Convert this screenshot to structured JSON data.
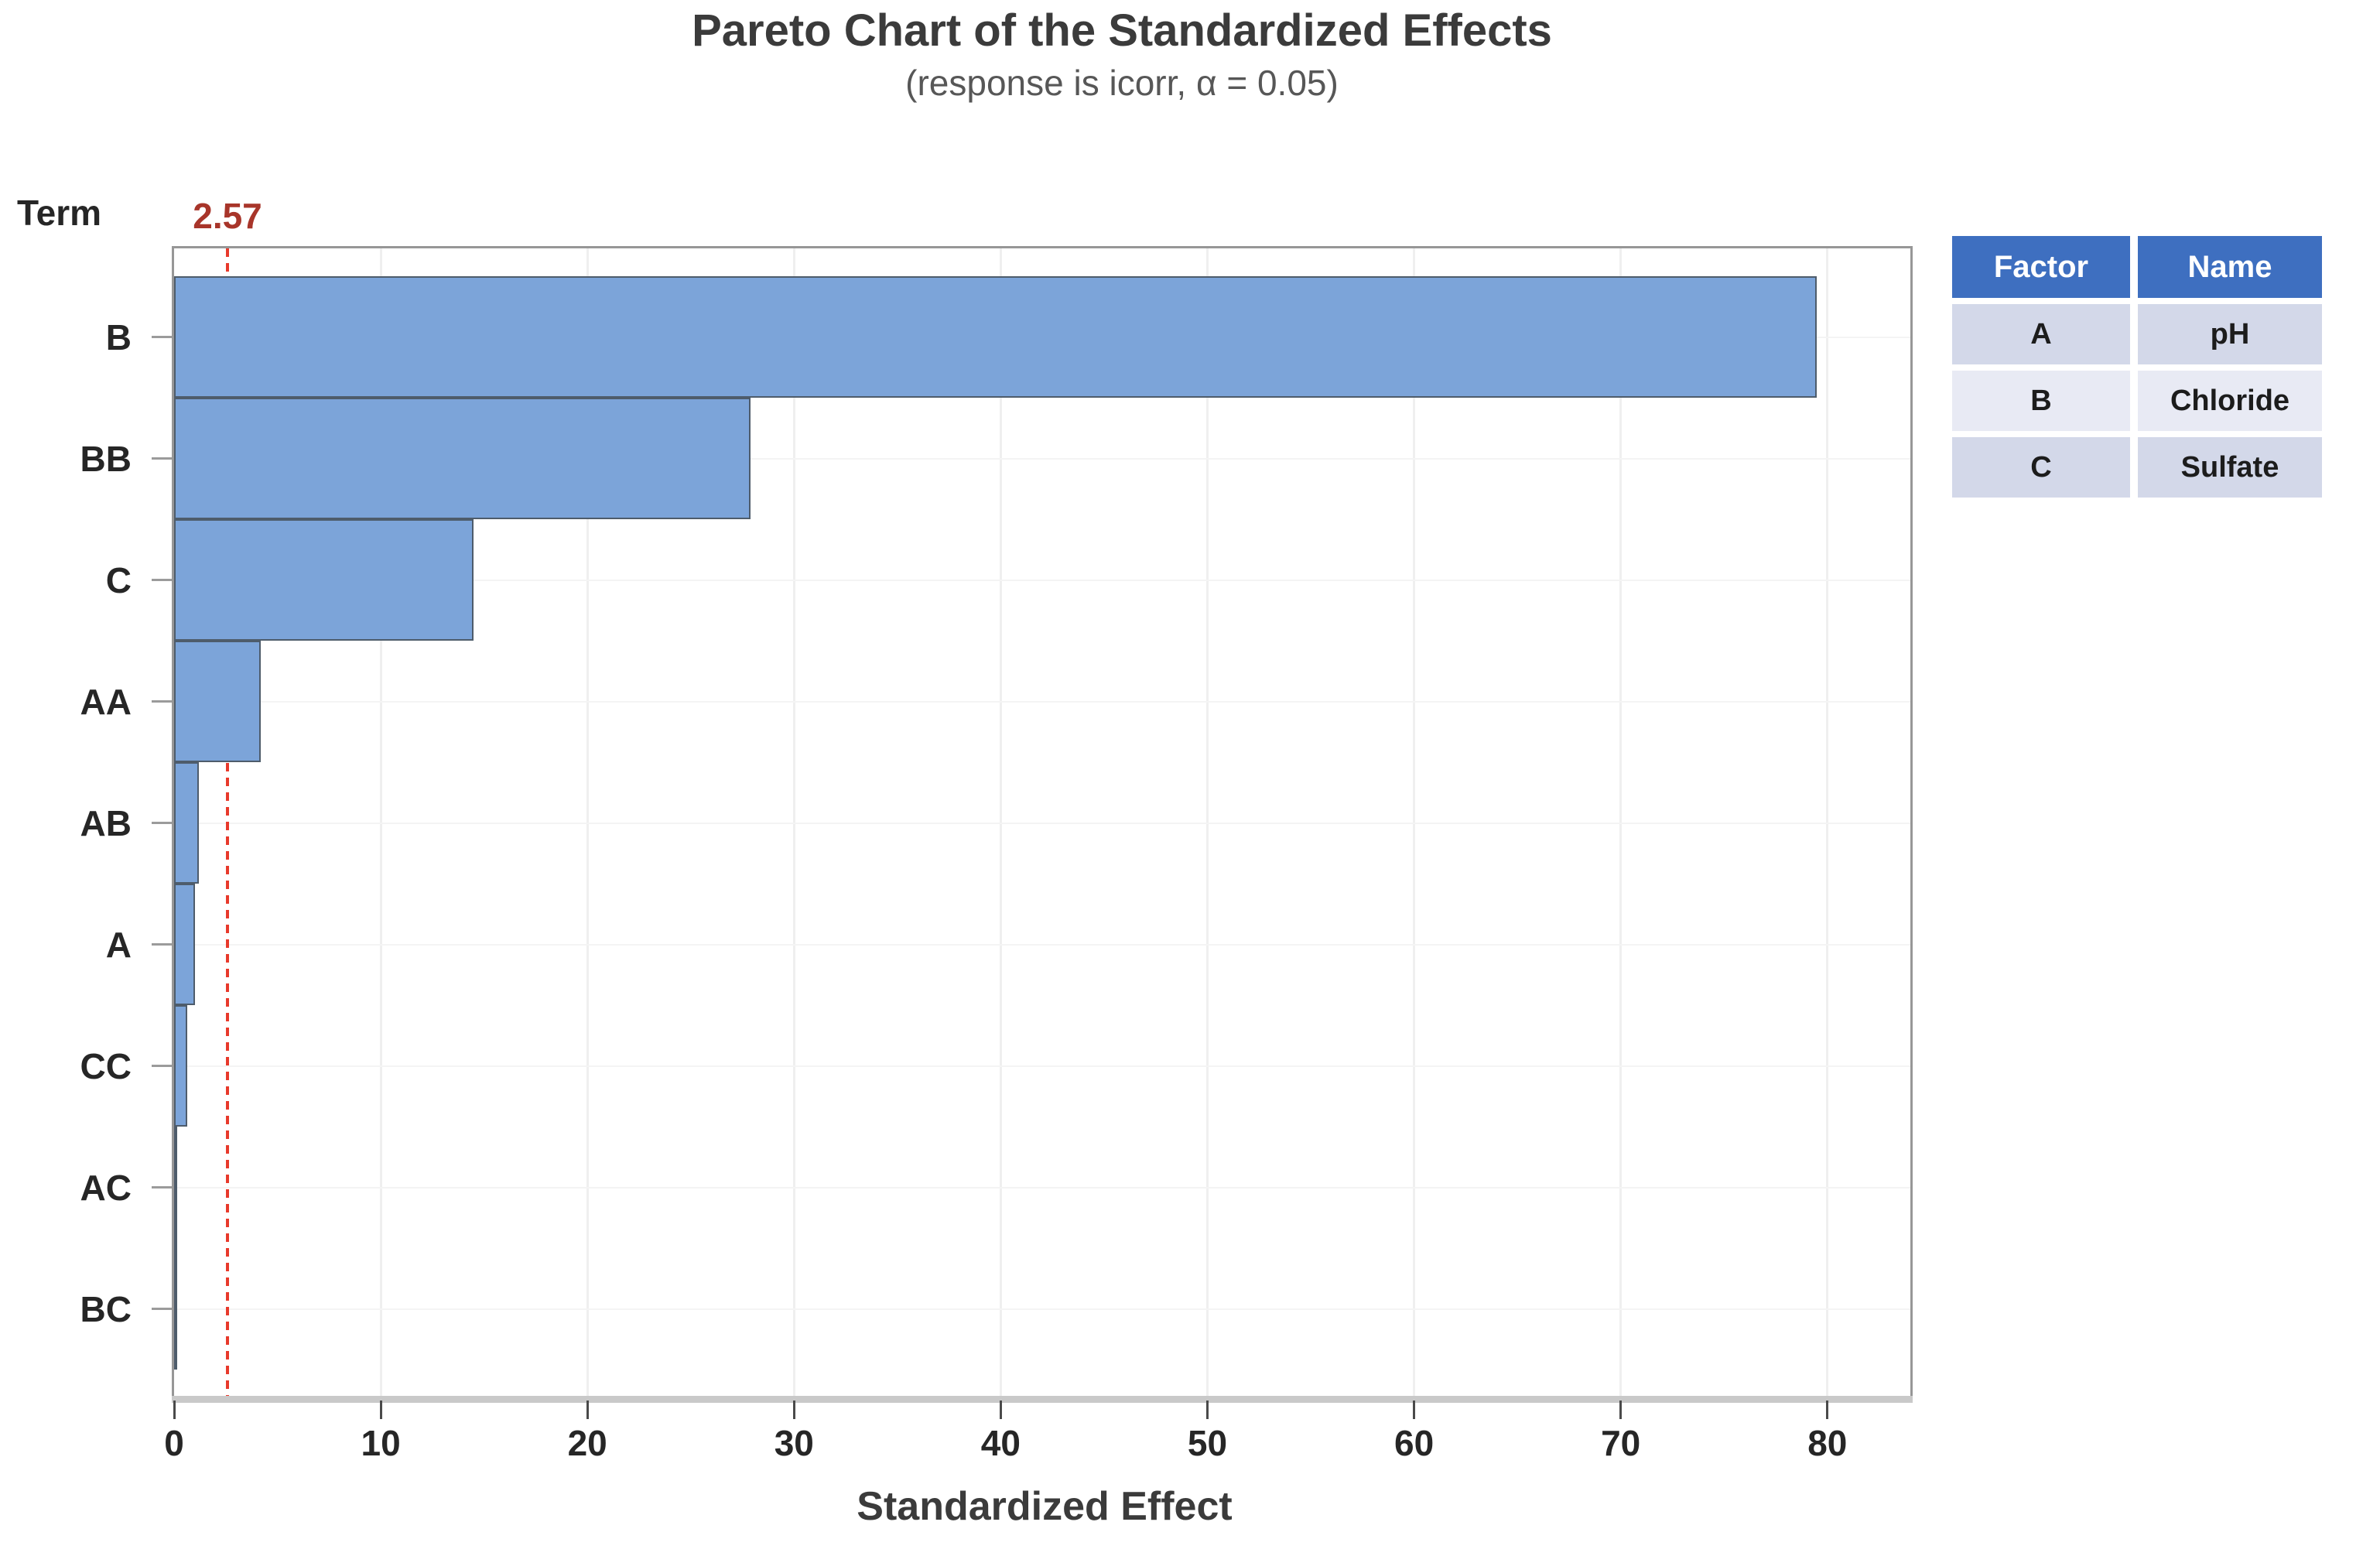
{
  "title": "Pareto Chart of the Standardized Effects",
  "subtitle": "(response is icorr, α = 0.05)",
  "y_axis": {
    "label": "Term"
  },
  "x_axis": {
    "label": "Standardized Effect",
    "ticks": [
      0,
      10,
      20,
      30,
      40,
      50,
      60,
      70,
      80
    ],
    "max": 84
  },
  "reference_line": {
    "label": "2.57",
    "value": 2.57
  },
  "chart_data": {
    "type": "bar",
    "orientation": "horizontal",
    "title": "Pareto Chart of the Standardized Effects",
    "subtitle": "(response is icorr, α = 0.05)",
    "xlabel": "Standardized Effect",
    "ylabel": "Term",
    "categories": [
      "B",
      "BB",
      "C",
      "AA",
      "AB",
      "A",
      "CC",
      "AC",
      "BC"
    ],
    "values": [
      79.5,
      27.9,
      14.5,
      4.2,
      1.2,
      1.0,
      0.65,
      0.08,
      0.04
    ],
    "xlim": [
      0,
      84
    ],
    "reference_line": 2.57,
    "significance_alpha": 0.05,
    "grid": "vertical gridlines at multiples of 10, faint horizontal gridlines at category centers",
    "legend_position": "right"
  },
  "legend_table": {
    "headers": [
      "Factor",
      "Name"
    ],
    "rows": [
      [
        "A",
        "pH"
      ],
      [
        "B",
        "Chloride"
      ],
      [
        "C",
        "Sulfate"
      ]
    ]
  },
  "colors": {
    "bar_fill": "#7CA4D9",
    "bar_border": "#4E5C6B",
    "reference_line": "#E8392B",
    "reference_label": "#A8352A",
    "table_header_bg": "#3E6FC0",
    "table_row_bg_a": "#D3D8E9",
    "table_row_bg_b": "#E8EAF4",
    "plot_border": "#979797",
    "gridline": "#EFEFEF"
  }
}
